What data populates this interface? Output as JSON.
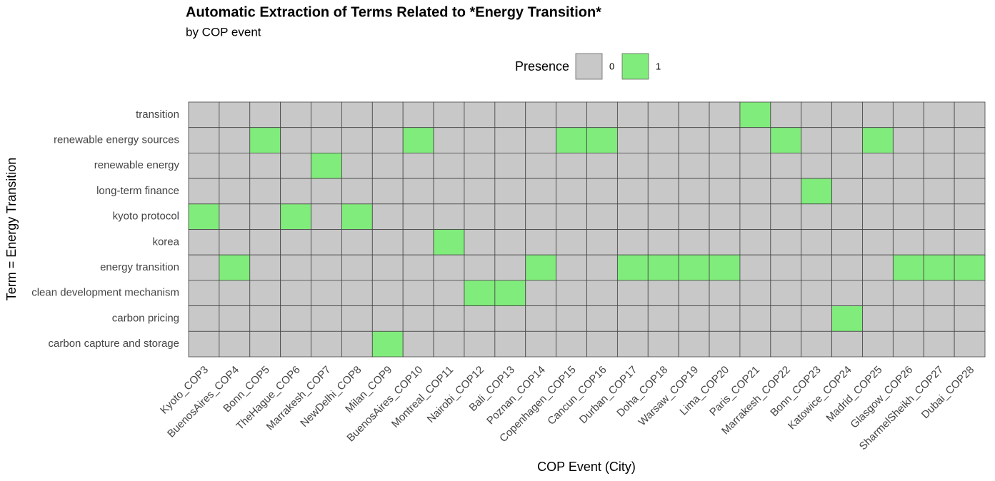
{
  "chart_data": {
    "type": "heatmap",
    "title": "Automatic Extraction of Terms Related to *Energy Transition*",
    "subtitle": "by COP event",
    "x_label": "COP Event (City)",
    "y_label": "Term = Energy Transition",
    "legend": {
      "title": "Presence",
      "levels": [
        0,
        1
      ],
      "colors": [
        "#c8c8c8",
        "#80ec7b"
      ]
    },
    "x": [
      "Kyoto_COP3",
      "BuenosAires_COP4",
      "Bonn_COP5",
      "TheHague_COP6",
      "Marrakesh_COP7",
      "NewDelhi_COP8",
      "Milan_COP9",
      "BuenosAires_COP10",
      "Montreal_COP11",
      "Nairobi_COP12",
      "Bali_COP13",
      "Poznan_COP14",
      "Copenhagen_COP15",
      "Cancun_COP16",
      "Durban_COP17",
      "Doha_COP18",
      "Warsaw_COP19",
      "Lima_COP20",
      "Paris_COP21",
      "Marrakesh_COP22",
      "Bonn_COP23",
      "Katowice_COP24",
      "Madrid_COP25",
      "Glasgow_COP26",
      "SharmelSheikh_COP27",
      "Dubai_COP28"
    ],
    "y": [
      "transition",
      "renewable energy sources",
      "renewable energy",
      "long-term finance",
      "kyoto protocol",
      "korea",
      "energy transition",
      "clean development mechanism",
      "carbon pricing",
      "carbon capture and storage"
    ],
    "z": [
      [
        0,
        0,
        0,
        0,
        0,
        0,
        0,
        0,
        0,
        0,
        0,
        0,
        0,
        0,
        0,
        0,
        0,
        0,
        1,
        0,
        0,
        0,
        0,
        0,
        0,
        0
      ],
      [
        0,
        0,
        1,
        0,
        0,
        0,
        0,
        1,
        0,
        0,
        0,
        0,
        1,
        1,
        0,
        0,
        0,
        0,
        0,
        1,
        0,
        0,
        1,
        0,
        0,
        0
      ],
      [
        0,
        0,
        0,
        0,
        1,
        0,
        0,
        0,
        0,
        0,
        0,
        0,
        0,
        0,
        0,
        0,
        0,
        0,
        0,
        0,
        0,
        0,
        0,
        0,
        0,
        0
      ],
      [
        0,
        0,
        0,
        0,
        0,
        0,
        0,
        0,
        0,
        0,
        0,
        0,
        0,
        0,
        0,
        0,
        0,
        0,
        0,
        0,
        1,
        0,
        0,
        0,
        0,
        0
      ],
      [
        1,
        0,
        0,
        1,
        0,
        1,
        0,
        0,
        0,
        0,
        0,
        0,
        0,
        0,
        0,
        0,
        0,
        0,
        0,
        0,
        0,
        0,
        0,
        0,
        0,
        0
      ],
      [
        0,
        0,
        0,
        0,
        0,
        0,
        0,
        0,
        1,
        0,
        0,
        0,
        0,
        0,
        0,
        0,
        0,
        0,
        0,
        0,
        0,
        0,
        0,
        0,
        0,
        0
      ],
      [
        0,
        1,
        0,
        0,
        0,
        0,
        0,
        0,
        0,
        0,
        0,
        1,
        0,
        0,
        1,
        1,
        1,
        1,
        0,
        0,
        0,
        0,
        0,
        1,
        1,
        1
      ],
      [
        0,
        0,
        0,
        0,
        0,
        0,
        0,
        0,
        0,
        1,
        1,
        0,
        0,
        0,
        0,
        0,
        0,
        0,
        0,
        0,
        0,
        0,
        0,
        0,
        0,
        0
      ],
      [
        0,
        0,
        0,
        0,
        0,
        0,
        0,
        0,
        0,
        0,
        0,
        0,
        0,
        0,
        0,
        0,
        0,
        0,
        0,
        0,
        0,
        1,
        0,
        0,
        0,
        0
      ],
      [
        0,
        0,
        0,
        0,
        0,
        0,
        1,
        0,
        0,
        0,
        0,
        0,
        0,
        0,
        0,
        0,
        0,
        0,
        0,
        0,
        0,
        0,
        0,
        0,
        0,
        0
      ]
    ]
  }
}
